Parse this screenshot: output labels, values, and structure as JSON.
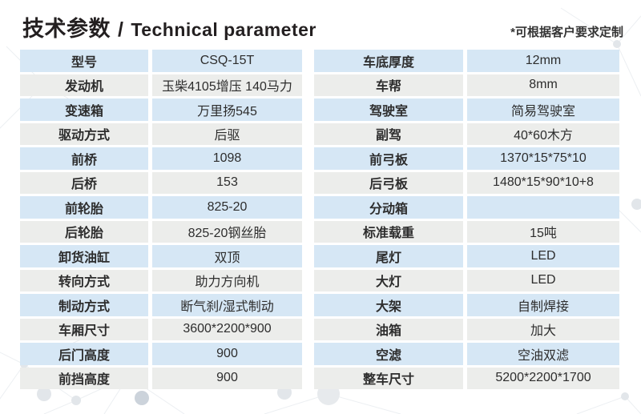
{
  "header": {
    "title_zh": "技术参数",
    "title_sep": "/",
    "title_en": "Technical parameter",
    "note": "*可根据客户要求定制"
  },
  "colors": {
    "row_blue": "#d6e7f5",
    "row_gray": "#ecedeb",
    "title_text": "#231f20",
    "cell_text": "#2d2d2d",
    "background": "#ffffff"
  },
  "tables": {
    "left": {
      "rows": [
        {
          "label": "型号",
          "value": "CSQ-15T"
        },
        {
          "label": "发动机",
          "value": "玉柴4105增压 140马力"
        },
        {
          "label": "变速箱",
          "value": "万里扬545"
        },
        {
          "label": "驱动方式",
          "value": "后驱"
        },
        {
          "label": "前桥",
          "value": "1098"
        },
        {
          "label": "后桥",
          "value": "153"
        },
        {
          "label": "前轮胎",
          "value": "825-20"
        },
        {
          "label": "后轮胎",
          "value": "825-20钢丝胎"
        },
        {
          "label": "卸货油缸",
          "value": "双顶"
        },
        {
          "label": "转向方式",
          "value": "助力方向机"
        },
        {
          "label": "制动方式",
          "value": "断气刹/湿式制动"
        },
        {
          "label": "车厢尺寸",
          "value": "3600*2200*900"
        },
        {
          "label": "后门高度",
          "value": "900"
        },
        {
          "label": "前挡高度",
          "value": "900"
        }
      ]
    },
    "right": {
      "rows": [
        {
          "label": "车底厚度",
          "value": "12mm"
        },
        {
          "label": "车帮",
          "value": "8mm"
        },
        {
          "label": "驾驶室",
          "value": "简易驾驶室"
        },
        {
          "label": "副驾",
          "value": "40*60木方"
        },
        {
          "label": "前弓板",
          "value": "1370*15*75*10"
        },
        {
          "label": "后弓板",
          "value": "1480*15*90*10+8"
        },
        {
          "label": "分动箱",
          "value": ""
        },
        {
          "label": "标准载重",
          "value": "15吨"
        },
        {
          "label": "尾灯",
          "value": "LED"
        },
        {
          "label": "大灯",
          "value": "LED"
        },
        {
          "label": "大架",
          "value": "自制焊接"
        },
        {
          "label": "油箱",
          "value": "加大"
        },
        {
          "label": "空滤",
          "value": "空油双滤"
        },
        {
          "label": "整车尺寸",
          "value": "5200*2200*1700"
        }
      ]
    }
  }
}
